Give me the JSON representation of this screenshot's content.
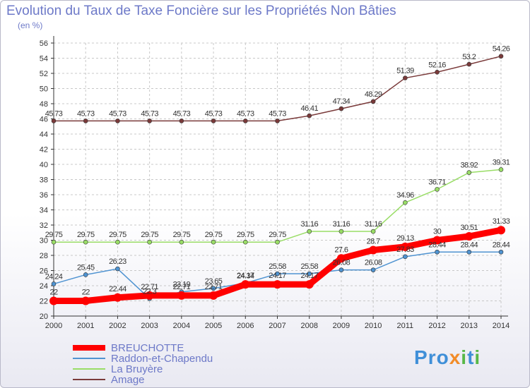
{
  "header": {
    "title": "Evolution du Taux de Taxe Foncière sur les Propriétés Non Bâties",
    "subtitle": "(en %)"
  },
  "logo": {
    "text": "Proxiti",
    "colors": [
      "#3f8fd8",
      "#f28c28",
      "#58b848"
    ]
  },
  "colors": {
    "axis": "#333333",
    "grid": "#c8c8c8",
    "text": "#6d79c8"
  },
  "chart_data": {
    "type": "line",
    "x": [
      "2000",
      "2001",
      "2002",
      "2003",
      "2004",
      "2005",
      "2006",
      "2007",
      "2008",
      "2009",
      "2010",
      "2011",
      "2012",
      "2013",
      "2014"
    ],
    "ylim": [
      20,
      56
    ],
    "yticks": [
      20,
      22,
      24,
      26,
      28,
      30,
      32,
      34,
      36,
      38,
      40,
      42,
      44,
      46,
      48,
      50,
      52,
      54,
      56
    ],
    "grid": true,
    "legend_position": "bottom-left",
    "series": [
      {
        "name": "BREUCHOTTE",
        "color": "#ff0000",
        "values": [
          22,
          22,
          22.44,
          22.71,
          22.71,
          22.71,
          24.17,
          24.17,
          24.17,
          27.6,
          28.7,
          29.13,
          30,
          30.51,
          31.33
        ],
        "labels": [
          "22",
          "22",
          "22.44",
          "22.71",
          "22.71",
          "22.71",
          "24.17",
          "24.17",
          "24.17",
          "27.6",
          "28.7",
          "29.13",
          "30",
          "30.51",
          "31.33"
        ]
      },
      {
        "name": "Raddon-et-Chapendu",
        "color": "#4f93d1",
        "values": [
          24.24,
          25.45,
          26.23,
          22.3,
          23.19,
          23.65,
          24.34,
          25.58,
          25.58,
          26.08,
          26.08,
          27.83,
          28.44,
          28.44,
          28.44
        ],
        "labels": [
          "24.24",
          "25.45",
          "26.23",
          "22.3",
          "23.19",
          "23.65",
          "24.34",
          "25.58",
          "25.58",
          "26.08",
          "26.08",
          "27.83",
          "28.44",
          "28.44",
          "28.44"
        ]
      },
      {
        "name": "La Bruyère",
        "color": "#99dd66",
        "values": [
          29.75,
          29.75,
          29.75,
          29.75,
          29.75,
          29.75,
          29.75,
          29.75,
          31.16,
          31.16,
          31.16,
          34.96,
          36.71,
          38.92,
          39.31
        ],
        "labels": [
          "29.75",
          "29.75",
          "29.75",
          "29.75",
          "29.75",
          "29.75",
          "29.75",
          "29.75",
          "31.16",
          "31.16",
          "31.16",
          "34.96",
          "36.71",
          "38.92",
          "39.31"
        ]
      },
      {
        "name": "Amage",
        "color": "#7a3a3a",
        "values": [
          45.73,
          45.73,
          45.73,
          45.73,
          45.73,
          45.73,
          45.73,
          45.73,
          46.41,
          47.34,
          48.29,
          51.39,
          52.16,
          53.2,
          54.26
        ],
        "labels": [
          "45.73",
          "45.73",
          "45.73",
          "45.73",
          "45.73",
          "45.73",
          "45.73",
          "45.73",
          "46.41",
          "47.34",
          "48.29",
          "51.39",
          "52.16",
          "53.2",
          "54.26"
        ]
      }
    ]
  }
}
